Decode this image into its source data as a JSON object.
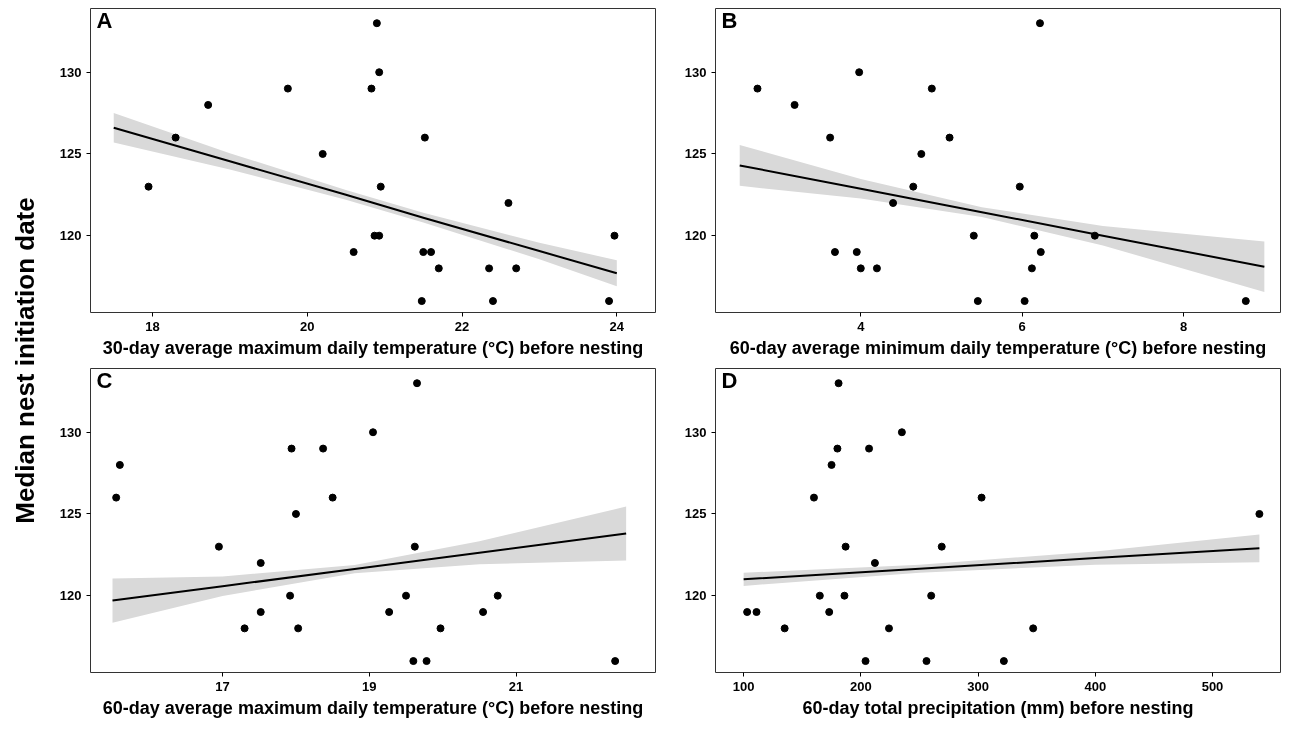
{
  "chart_data": [
    {
      "type": "scatter",
      "ylabel": "Median nest initiation date",
      "xlabel": "30-day average maximum daily temperature (°C) before nesting",
      "annotations": [
        "A"
      ],
      "xlim": [
        17.2,
        24.5
      ],
      "xticks": [
        18,
        20,
        22,
        24
      ],
      "ylim": [
        115.3,
        133.9
      ],
      "yticks": [
        120,
        125,
        130
      ],
      "grid": false,
      "series": [
        {
          "marker": "circle",
          "color": "#000000",
          "x": [
            17.95,
            18.3,
            18.72,
            19.75,
            20.2,
            20.6,
            20.83,
            20.87,
            20.9,
            20.93,
            20.93,
            20.95,
            21.48,
            21.5,
            21.6,
            21.52,
            21.7,
            22.35,
            22.4,
            22.6,
            22.7,
            23.9,
            23.97
          ],
          "values": [
            123,
            126,
            128,
            129,
            125,
            119,
            129,
            120,
            133,
            130,
            120,
            123,
            116,
            119,
            119,
            126,
            118,
            118,
            116,
            122,
            118,
            116,
            120
          ]
        },
        {
          "type": "line",
          "color": "#000000",
          "x": [
            17.5,
            19,
            20.5,
            21.5,
            23,
            24
          ],
          "values": [
            126.6,
            124.55,
            122.5,
            121.1,
            119.06,
            117.7
          ],
          "lower": [
            125.7,
            124.05,
            122.2,
            120.8,
            118.56,
            116.9
          ],
          "upper": [
            127.5,
            125.05,
            122.8,
            121.4,
            119.56,
            118.5
          ]
        }
      ]
    },
    {
      "type": "scatter",
      "xlabel": "60-day average minimum daily temperature (°C) before nesting",
      "annotations": [
        "B"
      ],
      "xlim": [
        2.2,
        9.2
      ],
      "xticks": [
        4,
        6,
        8
      ],
      "ylim": [
        115.3,
        133.9
      ],
      "yticks": [
        120,
        125,
        130
      ],
      "grid": false,
      "series": [
        {
          "marker": "circle",
          "color": "#000000",
          "x": [
            2.72,
            3.18,
            3.62,
            3.68,
            3.95,
            3.98,
            4.0,
            4.2,
            4.4,
            4.65,
            4.75,
            4.88,
            5.1,
            5.4,
            5.45,
            5.97,
            6.03,
            6.12,
            6.15,
            6.22,
            6.23,
            6.9,
            8.77
          ],
          "values": [
            129,
            128,
            126,
            119,
            119,
            130,
            118,
            118,
            122,
            123,
            125,
            129,
            126,
            120,
            116,
            123,
            116,
            118,
            120,
            133,
            119,
            120,
            116
          ]
        },
        {
          "type": "line",
          "color": "#000000",
          "x": [
            2.5,
            4,
            5.5,
            7,
            9
          ],
          "values": [
            124.3,
            122.87,
            121.44,
            120.0,
            118.1
          ],
          "lower": [
            123.05,
            122.27,
            121.14,
            119.4,
            116.55
          ],
          "upper": [
            125.55,
            123.47,
            121.74,
            120.6,
            119.65
          ]
        }
      ]
    },
    {
      "type": "scatter",
      "xlabel": "60-day average maximum daily temperature (°C) before nesting",
      "annotations": [
        "C"
      ],
      "xlim": [
        15.2,
        22.9
      ],
      "xticks": [
        17,
        19,
        21
      ],
      "ylim": [
        115.3,
        133.9
      ],
      "yticks": [
        120,
        125,
        130
      ],
      "grid": false,
      "series": [
        {
          "marker": "circle",
          "color": "#000000",
          "x": [
            15.55,
            15.6,
            16.95,
            17.3,
            17.52,
            17.52,
            17.92,
            17.94,
            18.0,
            18.03,
            18.37,
            18.5,
            19.05,
            19.27,
            19.5,
            19.6,
            19.62,
            19.65,
            19.78,
            19.97,
            20.55,
            20.75,
            22.35
          ],
          "values": [
            126,
            128,
            123,
            118,
            122,
            119,
            120,
            129,
            125,
            118,
            129,
            126,
            130,
            119,
            120,
            116,
            123,
            133,
            116,
            118,
            119,
            120,
            116
          ]
        },
        {
          "type": "line",
          "color": "#000000",
          "x": [
            15.5,
            17,
            18.8,
            20.5,
            22.5
          ],
          "values": [
            119.7,
            120.58,
            121.63,
            122.63,
            123.8
          ],
          "lower": [
            118.35,
            119.98,
            121.38,
            121.93,
            122.15
          ],
          "upper": [
            121.05,
            121.18,
            121.88,
            123.33,
            125.45
          ]
        }
      ]
    },
    {
      "type": "scatter",
      "xlabel": "60-day total precipitation (mm) before nesting",
      "annotations": [
        "D"
      ],
      "xlim": [
        76,
        558
      ],
      "xticks": [
        100,
        200,
        300,
        400,
        500
      ],
      "ylim": [
        115.3,
        133.9
      ],
      "yticks": [
        120,
        125,
        130
      ],
      "grid": false,
      "series": [
        {
          "marker": "circle",
          "color": "#000000",
          "x": [
            103,
            111,
            135,
            160,
            165,
            173,
            175,
            180,
            181,
            187,
            186,
            204,
            207,
            212,
            224,
            235,
            256,
            260,
            269,
            303,
            322,
            347,
            540
          ],
          "values": [
            119,
            119,
            118,
            126,
            120,
            119,
            128,
            129,
            133,
            123,
            120,
            116,
            129,
            122,
            118,
            130,
            116,
            120,
            123,
            126,
            116,
            118,
            125
          ]
        },
        {
          "type": "line",
          "color": "#000000",
          "x": [
            100,
            250,
            400,
            540
          ],
          "values": [
            121.0,
            121.65,
            122.3,
            122.9
          ],
          "lower": [
            120.6,
            121.4,
            121.9,
            122.05
          ],
          "upper": [
            121.4,
            121.9,
            122.7,
            123.75
          ]
        }
      ]
    }
  ]
}
